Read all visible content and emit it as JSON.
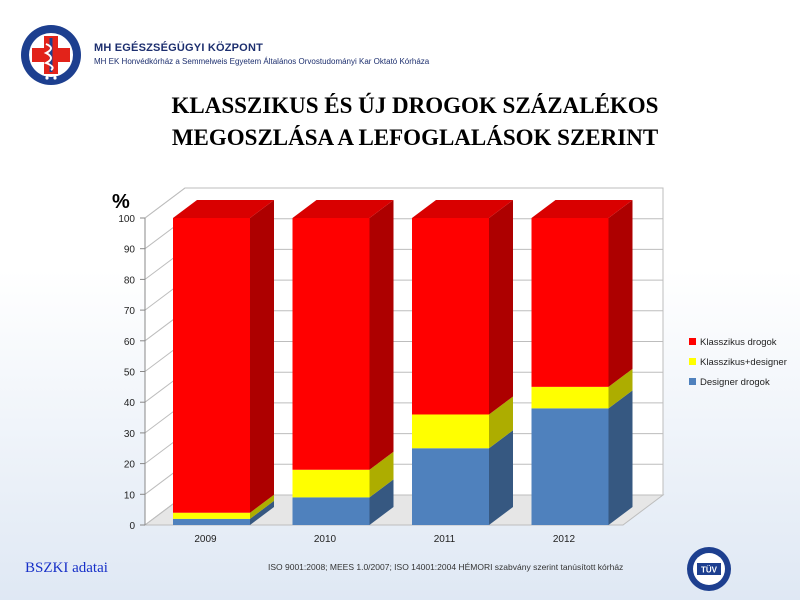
{
  "header": {
    "org_name": "MH EGÉSZSÉGÜGYI KÖZPONT",
    "org_sub": "MH EK Honvédkórház a Semmelweis Egyetem Általános Orvostudományi Kar Oktató Kórháza"
  },
  "footer": {
    "source": "BSZKI adatai",
    "iso": "ISO 9001:2008; MEES 1.0/2007; ISO 14001:2004 HÉMORI szabvány szerint tanúsított kórház",
    "tuv_label": "TÜV"
  },
  "colors": {
    "klasszikus": "#ff0000",
    "klasszikus_designer": "#ffff00",
    "designer": "#4f81bd"
  },
  "chart_data": {
    "type": "bar",
    "stacked": true,
    "three_d": true,
    "title_lines": [
      "KLASSZIKUS ÉS ÚJ DROGOK SZÁZALÉKOS",
      "MEGOSZLÁSA A LEFOGLALÁSOK SZERINT"
    ],
    "ylabel": "%",
    "ylim": [
      0,
      100
    ],
    "yticks": [
      0,
      10,
      20,
      30,
      40,
      50,
      60,
      70,
      80,
      90,
      100
    ],
    "categories": [
      "2009",
      "2010",
      "2011",
      "2012"
    ],
    "series": [
      {
        "name": "Designer drogok",
        "values": [
          2,
          9,
          25,
          38
        ]
      },
      {
        "name": "Klasszikus+designer",
        "values": [
          2,
          9,
          11,
          7
        ]
      },
      {
        "name": "Klasszikus drogok",
        "values": [
          96,
          82,
          64,
          55
        ]
      }
    ],
    "legend_position": "right",
    "legend_order": [
      "Klasszikus drogok",
      "Klasszikus+designer",
      "Designer drogok"
    ],
    "grid": true
  }
}
